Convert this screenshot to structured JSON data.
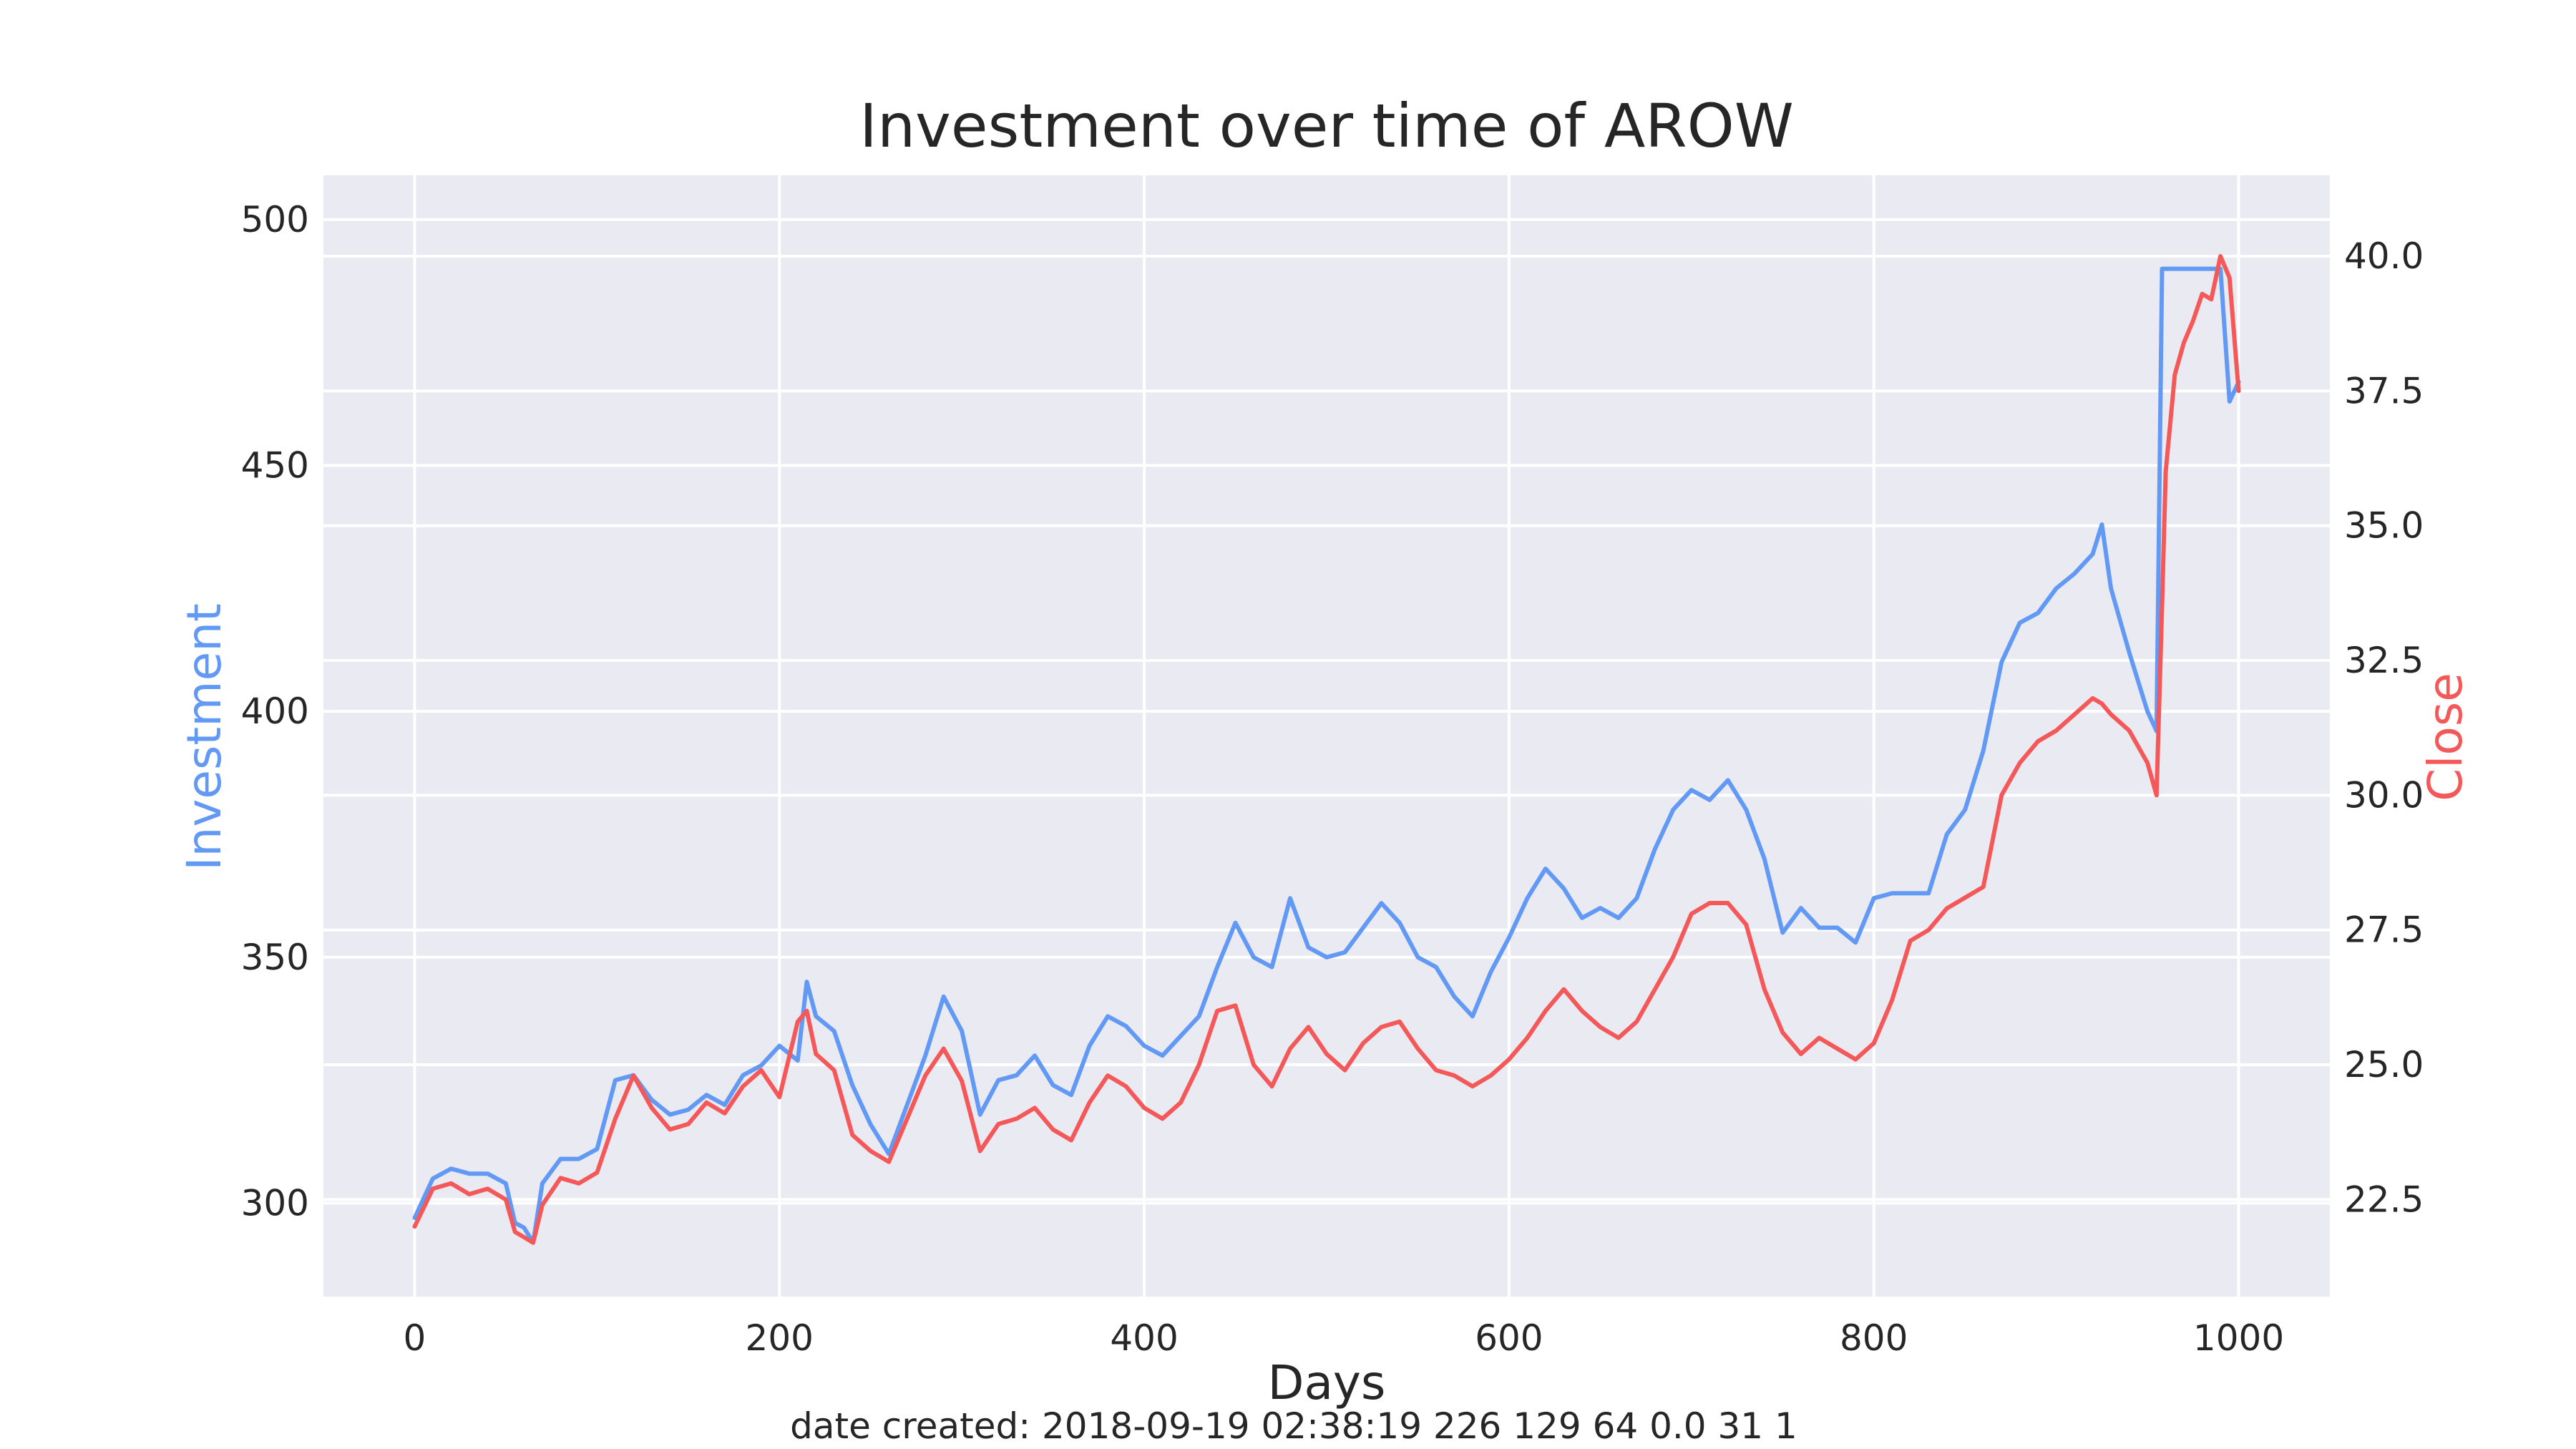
{
  "chart_data": {
    "type": "line",
    "title": "Investment over time of AROW",
    "xlabel": "Days",
    "footer": "date created: 2018-09-19 02:38:19 226 129 64 0.0 31 1",
    "xlim": [
      -50,
      1050
    ],
    "x_ticks": [
      0,
      200,
      400,
      600,
      800,
      1000
    ],
    "grid": true,
    "left_axis": {
      "label": "Investment",
      "color": "#6199f5",
      "ylim": [
        281,
        509
      ],
      "ticks": [
        300,
        350,
        400,
        450,
        500
      ]
    },
    "right_axis": {
      "label": "Close",
      "color": "#f45858",
      "ylim": [
        20.7,
        41.5
      ],
      "ticks": [
        "22.5",
        "25.0",
        "27.5",
        "30.0",
        "32.5",
        "35.0",
        "37.5",
        "40.0"
      ]
    },
    "series": [
      {
        "name": "Investment",
        "axis": "left",
        "color": "#6199f5",
        "x": [
          0,
          10,
          20,
          30,
          40,
          50,
          55,
          60,
          65,
          70,
          80,
          90,
          100,
          110,
          120,
          130,
          140,
          150,
          160,
          170,
          180,
          190,
          200,
          210,
          215,
          220,
          230,
          240,
          250,
          260,
          270,
          280,
          290,
          300,
          310,
          320,
          330,
          340,
          350,
          360,
          370,
          380,
          390,
          400,
          410,
          420,
          430,
          440,
          450,
          460,
          470,
          480,
          490,
          500,
          510,
          520,
          530,
          540,
          550,
          560,
          570,
          580,
          590,
          600,
          610,
          620,
          630,
          640,
          650,
          660,
          670,
          680,
          690,
          700,
          710,
          720,
          730,
          740,
          750,
          760,
          770,
          780,
          790,
          800,
          810,
          820,
          830,
          840,
          850,
          860,
          870,
          880,
          890,
          900,
          910,
          920,
          925,
          930,
          940,
          950,
          955,
          958,
          960,
          980,
          990,
          995,
          1000
        ],
        "y": [
          297,
          305,
          307,
          306,
          306,
          304,
          296,
          295,
          292,
          304,
          309,
          309,
          311,
          325,
          326,
          321,
          318,
          319,
          322,
          320,
          326,
          328,
          332,
          329,
          345,
          338,
          335,
          324,
          316,
          310,
          320,
          330,
          342,
          335,
          318,
          325,
          326,
          330,
          324,
          322,
          332,
          338,
          336,
          332,
          330,
          334,
          338,
          348,
          357,
          350,
          348,
          362,
          352,
          350,
          351,
          356,
          361,
          357,
          350,
          348,
          342,
          338,
          347,
          354,
          362,
          368,
          364,
          358,
          360,
          358,
          362,
          372,
          380,
          384,
          382,
          386,
          380,
          370,
          355,
          360,
          356,
          356,
          353,
          362,
          363,
          363,
          363,
          375,
          380,
          392,
          410,
          418,
          420,
          425,
          428,
          432,
          438,
          425,
          412,
          400,
          396,
          490,
          490,
          490,
          490,
          463,
          467
        ]
      },
      {
        "name": "Close",
        "axis": "right",
        "color": "#f45858",
        "x": [
          0,
          10,
          20,
          30,
          40,
          50,
          55,
          60,
          65,
          70,
          80,
          90,
          100,
          110,
          120,
          130,
          140,
          150,
          160,
          170,
          180,
          190,
          200,
          210,
          215,
          220,
          230,
          240,
          250,
          260,
          270,
          280,
          290,
          300,
          310,
          320,
          330,
          340,
          350,
          360,
          370,
          380,
          390,
          400,
          410,
          420,
          430,
          440,
          450,
          460,
          470,
          480,
          490,
          500,
          510,
          520,
          530,
          540,
          550,
          560,
          570,
          580,
          590,
          600,
          610,
          620,
          630,
          640,
          650,
          660,
          670,
          680,
          690,
          700,
          710,
          720,
          730,
          740,
          750,
          760,
          770,
          780,
          790,
          800,
          810,
          820,
          830,
          840,
          850,
          860,
          870,
          880,
          890,
          900,
          910,
          920,
          925,
          930,
          940,
          950,
          955,
          958,
          960,
          965,
          970,
          975,
          980,
          985,
          990,
          995,
          1000
        ],
        "y": [
          22.0,
          22.7,
          22.8,
          22.6,
          22.7,
          22.5,
          21.9,
          21.8,
          21.7,
          22.4,
          22.9,
          22.8,
          23.0,
          24.0,
          24.8,
          24.2,
          23.8,
          23.9,
          24.3,
          24.1,
          24.6,
          24.9,
          24.4,
          25.8,
          26.0,
          25.2,
          24.9,
          23.7,
          23.4,
          23.2,
          24.0,
          24.8,
          25.3,
          24.7,
          23.4,
          23.9,
          24.0,
          24.2,
          23.8,
          23.6,
          24.3,
          24.8,
          24.6,
          24.2,
          24.0,
          24.3,
          25.0,
          26.0,
          26.1,
          25.0,
          24.6,
          25.3,
          25.7,
          25.2,
          24.9,
          25.4,
          25.7,
          25.8,
          25.3,
          24.9,
          24.8,
          24.6,
          24.8,
          25.1,
          25.5,
          26.0,
          26.4,
          26.0,
          25.7,
          25.5,
          25.8,
          26.4,
          27.0,
          27.8,
          28.0,
          28.0,
          27.6,
          26.4,
          25.6,
          25.2,
          25.5,
          25.3,
          25.1,
          25.4,
          26.2,
          27.3,
          27.5,
          27.9,
          28.1,
          28.3,
          30.0,
          30.6,
          31.0,
          31.2,
          31.5,
          31.8,
          31.7,
          31.5,
          31.2,
          30.6,
          30.0,
          33.5,
          36.0,
          37.8,
          38.4,
          38.8,
          39.3,
          39.2,
          40.0,
          39.6,
          37.5
        ]
      }
    ]
  }
}
